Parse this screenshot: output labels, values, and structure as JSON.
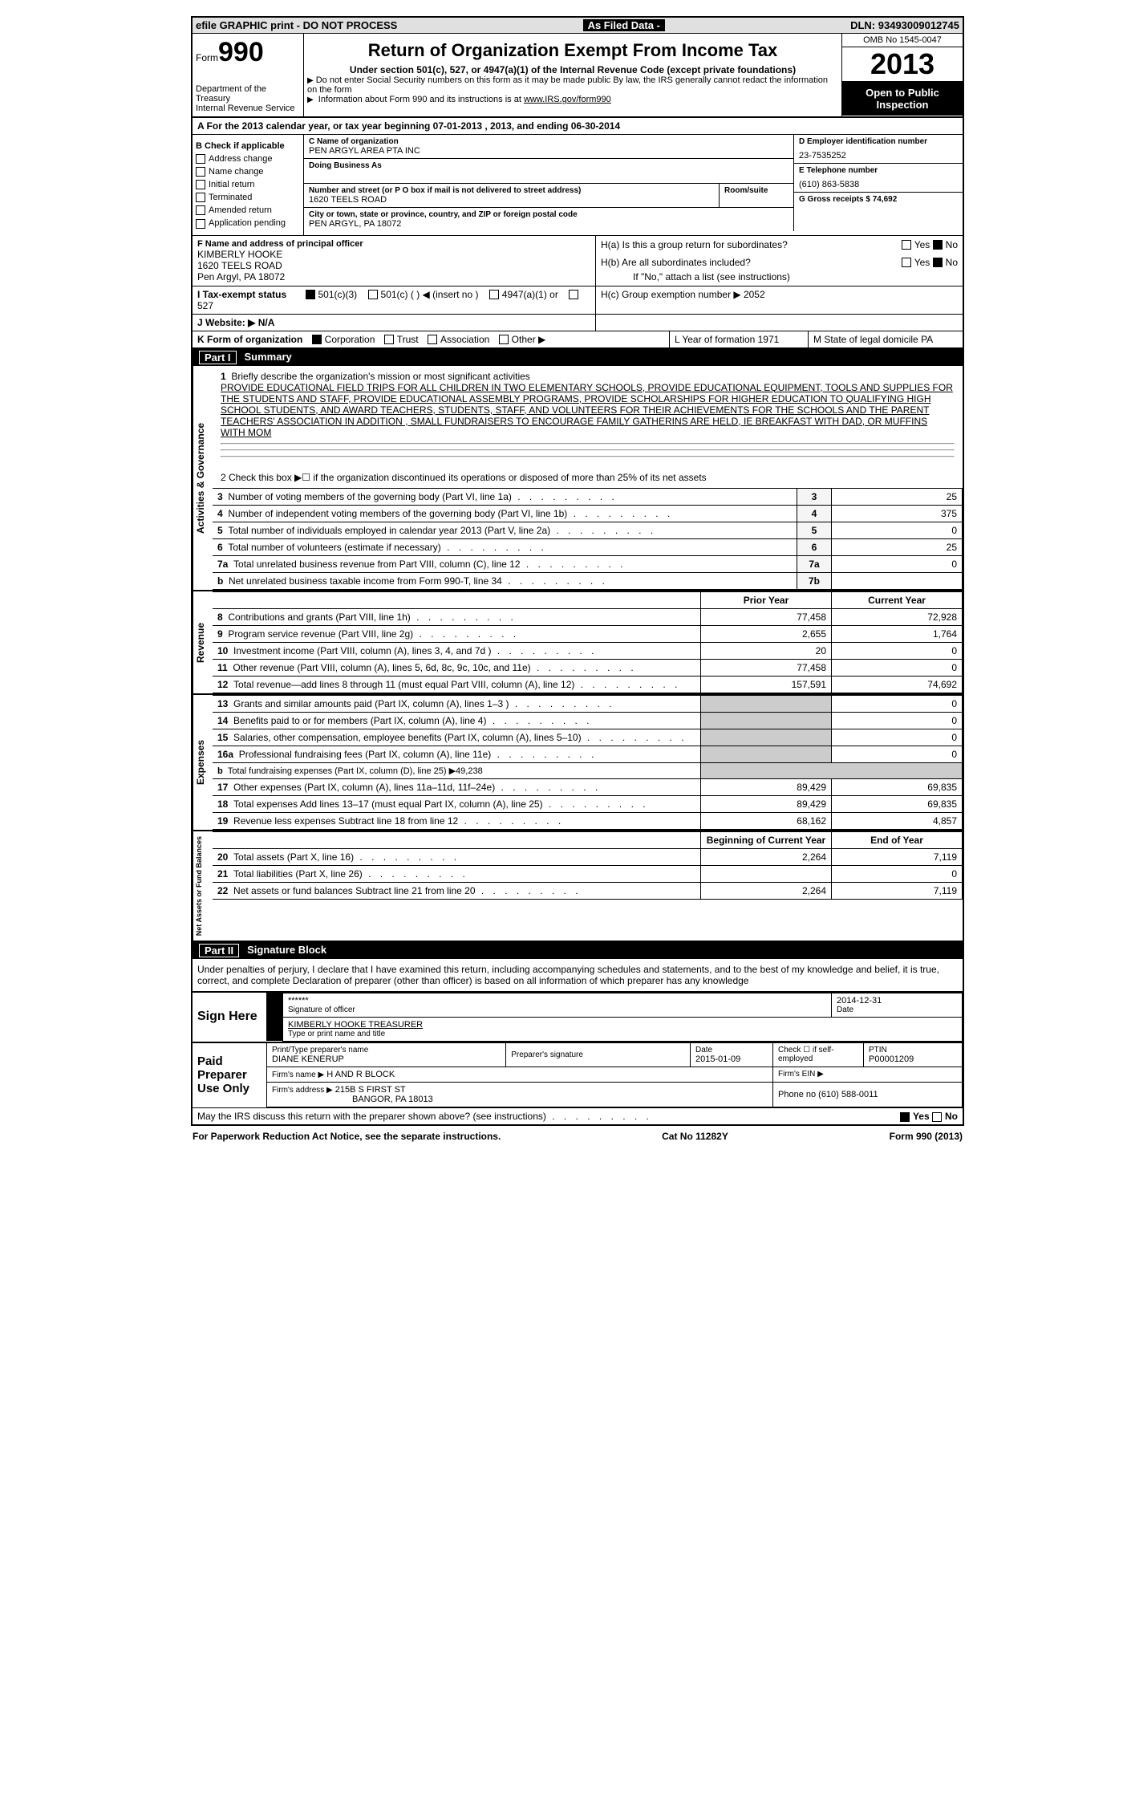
{
  "topbar": {
    "left": "efile GRAPHIC print - DO NOT PROCESS",
    "mid": "As Filed Data -",
    "right": "DLN: 93493009012745"
  },
  "header": {
    "form_label": "Form",
    "form_number": "990",
    "dept1": "Department of the Treasury",
    "dept2": "Internal Revenue Service",
    "title": "Return of Organization Exempt From Income Tax",
    "subtitle": "Under section 501(c), 527, or 4947(a)(1) of the Internal Revenue Code (except private foundations)",
    "line1": "Do not enter Social Security numbers on this form as it may be made public  By law, the IRS generally cannot redact the information on the form",
    "line2_pre": "Information about Form 990 and its instructions is at ",
    "line2_link": "www.IRS.gov/form990",
    "omb": "OMB No  1545-0047",
    "year": "2013",
    "inspect": "Open to Public Inspection"
  },
  "sectionA": {
    "text": "A  For the 2013 calendar year, or tax year beginning 07-01-2013    , 2013, and ending 06-30-2014"
  },
  "checkB": {
    "label": "B  Check if applicable",
    "items": [
      "Address change",
      "Name change",
      "Initial return",
      "Terminated",
      "Amended return",
      "Application pending"
    ]
  },
  "boxC": {
    "lbl_name": "C Name of organization",
    "name": "PEN ARGYL AREA PTA INC",
    "dba_lbl": "Doing Business As",
    "addr_lbl": "Number and street (or P O  box if mail is not delivered to street address)",
    "room_lbl": "Room/suite",
    "addr": "1620 TEELS ROAD",
    "city_lbl": "City or town, state or province, country, and ZIP or foreign postal code",
    "city": "PEN ARGYL, PA  18072"
  },
  "boxD": {
    "lbl": "D Employer identification number",
    "val": "23-7535252"
  },
  "boxE": {
    "lbl": "E Telephone number",
    "val": "(610) 863-5838"
  },
  "boxG": {
    "lbl": "G Gross receipts $ 74,692"
  },
  "boxF": {
    "lbl": "F  Name and address of principal officer",
    "name": "KIMBERLY HOOKE",
    "addr1": "1620 TEELS ROAD",
    "addr2": "Pen Argyl, PA  18072"
  },
  "boxH": {
    "ha": "H(a)  Is this a group return for subordinates?",
    "hb": "H(b)  Are all subordinates included?",
    "hb2": "If \"No,\" attach a list  (see instructions)",
    "hc": "H(c)   Group exemption number ▶  2052",
    "yes": "Yes",
    "no": "No"
  },
  "lineI": "I   Tax-exempt status",
  "lineI_opts": [
    "501(c)(3)",
    "501(c) (    ) ◀ (insert no )",
    "4947(a)(1) or",
    "527"
  ],
  "lineJ": "J  Website: ▶  N/A",
  "lineK": "K Form of organization",
  "lineK_opts": [
    "Corporation",
    "Trust",
    "Association",
    "Other ▶"
  ],
  "lineL": "L Year of formation  1971",
  "lineM": "M State of legal domicile   PA",
  "partI": "Part I",
  "partI_title": "Summary",
  "mission": {
    "num": "1",
    "lbl": "Briefly describe the organization's mission or most significant activities",
    "txt": "PROVIDE EDUCATIONAL FIELD TRIPS FOR ALL CHILDREN IN TWO ELEMENTARY SCHOOLS, PROVIDE EDUCATIONAL EQUIPMENT, TOOLS AND SUPPLIES FOR THE STUDENTS AND STAFF, PROVIDE EDUCATIONAL ASSEMBLY PROGRAMS, PROVIDE SCHOLARSHIPS FOR HIGHER EDUCATION TO QUALIFYING HIGH SCHOOL STUDENTS, AND AWARD TEACHERS, STUDENTS, STAFF, AND VOLUNTEERS FOR THEIR ACHIEVEMENTS FOR THE SCHOOLS AND THE PARENT TEACHERS' ASSOCIATION  IN ADDITION , SMALL FUNDRAISERS TO ENCOURAGE FAMILY GATHERINS ARE HELD, IE BREAKFAST WITH DAD, OR MUFFINS WITH MOM"
  },
  "line2": "2   Check this box ▶☐ if the organization discontinued its operations or disposed of more than 25% of its net assets",
  "gov_side": "Activities & Governance",
  "gov_rows": [
    {
      "n": "3",
      "d": "Number of voting members of the governing body (Part VI, line 1a)",
      "ln": "3",
      "v": "25"
    },
    {
      "n": "4",
      "d": "Number of independent voting members of the governing body (Part VI, line 1b)",
      "ln": "4",
      "v": "375"
    },
    {
      "n": "5",
      "d": "Total number of individuals employed in calendar year 2013 (Part V, line 2a)",
      "ln": "5",
      "v": "0"
    },
    {
      "n": "6",
      "d": "Total number of volunteers (estimate if necessary)",
      "ln": "6",
      "v": "25"
    },
    {
      "n": "7a",
      "d": "Total unrelated business revenue from Part VIII, column (C), line 12",
      "ln": "7a",
      "v": "0"
    },
    {
      "n": "b",
      "d": "Net unrelated business taxable income from Form 990-T, line 34",
      "ln": "7b",
      "v": ""
    }
  ],
  "rev_side": "Revenue",
  "pyh": "Prior Year",
  "cyh": "Current Year",
  "rev_rows": [
    {
      "n": "8",
      "d": "Contributions and grants (Part VIII, line 1h)",
      "py": "77,458",
      "cy": "72,928"
    },
    {
      "n": "9",
      "d": "Program service revenue (Part VIII, line 2g)",
      "py": "2,655",
      "cy": "1,764"
    },
    {
      "n": "10",
      "d": "Investment income (Part VIII, column (A), lines 3, 4, and 7d )",
      "py": "20",
      "cy": "0"
    },
    {
      "n": "11",
      "d": "Other revenue (Part VIII, column (A), lines 5, 6d, 8c, 9c, 10c, and 11e)",
      "py": "77,458",
      "cy": "0"
    },
    {
      "n": "12",
      "d": "Total revenue—add lines 8 through 11 (must equal Part VIII, column (A), line 12)",
      "py": "157,591",
      "cy": "74,692"
    }
  ],
  "exp_side": "Expenses",
  "exp_rows": [
    {
      "n": "13",
      "d": "Grants and similar amounts paid (Part IX, column (A), lines 1–3 )",
      "py": "",
      "cy": "0"
    },
    {
      "n": "14",
      "d": "Benefits paid to or for members (Part IX, column (A), line 4)",
      "py": "",
      "cy": "0"
    },
    {
      "n": "15",
      "d": "Salaries, other compensation, employee benefits (Part IX, column (A), lines 5–10)",
      "py": "",
      "cy": "0"
    },
    {
      "n": "16a",
      "d": "Professional fundraising fees (Part IX, column (A), line 11e)",
      "py": "",
      "cy": "0"
    },
    {
      "n": "b",
      "d": "Total fundraising expenses (Part IX, column (D), line 25)  ▶49,238",
      "py": "-",
      "cy": "-"
    },
    {
      "n": "17",
      "d": "Other expenses (Part IX, column (A), lines 11a–11d, 11f–24e)",
      "py": "89,429",
      "cy": "69,835"
    },
    {
      "n": "18",
      "d": "Total expenses  Add lines 13–17 (must equal Part IX, column (A), line 25)",
      "py": "89,429",
      "cy": "69,835"
    },
    {
      "n": "19",
      "d": "Revenue less expenses  Subtract line 18 from line 12",
      "py": "68,162",
      "cy": "4,857"
    }
  ],
  "na_side": "Net Assets or Fund Balances",
  "bcy": "Beginning of Current Year",
  "eoy": "End of Year",
  "na_rows": [
    {
      "n": "20",
      "d": "Total assets (Part X, line 16)",
      "py": "2,264",
      "cy": "7,119"
    },
    {
      "n": "21",
      "d": "Total liabilities (Part X, line 26)",
      "py": "",
      "cy": "0"
    },
    {
      "n": "22",
      "d": "Net assets or fund balances  Subtract line 21 from line 20",
      "py": "2,264",
      "cy": "7,119"
    }
  ],
  "partII": "Part II",
  "partII_title": "Signature Block",
  "perjury": "Under penalties of perjury, I declare that I have examined this return, including accompanying schedules and statements, and to the best of my knowledge and belief, it is true, correct, and complete  Declaration of preparer (other than officer) is based on all information of which preparer has any knowledge",
  "sign": {
    "here": "Sign Here",
    "stars": "******",
    "sig_lbl": "Signature of officer",
    "date": "2014-12-31",
    "date_lbl": "Date",
    "name": "KIMBERLY HOOKE TREASURER",
    "name_lbl": "Type or print name and title"
  },
  "paid": {
    "here": "Paid Preparer Use Only",
    "prep_name_lbl": "Print/Type preparer's name",
    "prep_name": "DIANE KENERUP",
    "prep_sig_lbl": "Preparer's signature",
    "prep_date_lbl": "Date",
    "prep_date": "2015-01-09",
    "check_lbl": "Check ☐ if self-employed",
    "ptin_lbl": "PTIN",
    "ptin": "P00001209",
    "firm_name_lbl": "Firm's name    ▶",
    "firm_name": "H AND R BLOCK",
    "firm_ein_lbl": "Firm's EIN ▶",
    "firm_addr_lbl": "Firm's address ▶",
    "firm_addr": "215B S FIRST ST",
    "firm_city": "BANGOR, PA  18013",
    "phone_lbl": "Phone no  (610) 588-0011"
  },
  "discuss": "May the IRS discuss this return with the preparer shown above? (see instructions)",
  "discuss_yes": "Yes",
  "discuss_no": "No",
  "footer": {
    "left": "For Paperwork Reduction Act Notice, see the separate instructions.",
    "mid": "Cat No  11282Y",
    "right": "Form 990 (2013)"
  }
}
